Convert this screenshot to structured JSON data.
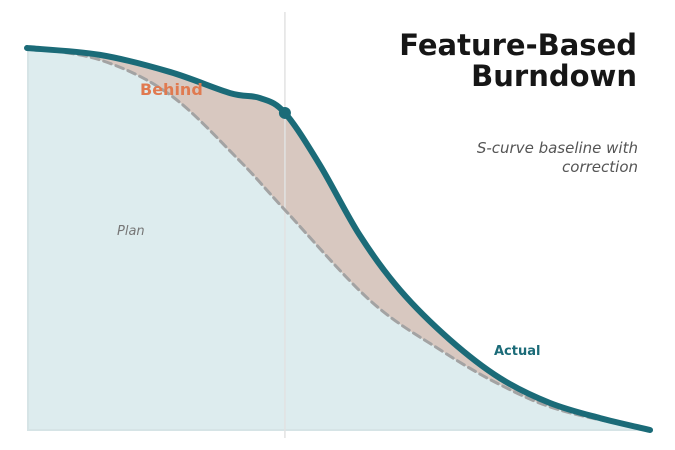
{
  "chart_data": {
    "type": "line",
    "title": "Feature-Based Burndown",
    "subtitle": "S-curve baseline with correction",
    "annotations": [
      "Behind",
      "Plan",
      "Actual"
    ],
    "xlim": [
      0,
      100
    ],
    "ylim": [
      0,
      100
    ],
    "marker_x": 41.4,
    "series": [
      {
        "name": "Plan",
        "color": "#a3a3a3",
        "dashed": true,
        "x": [
          0,
          11.7,
          23,
          34,
          41.4,
          55,
          66.3,
          76,
          85.6,
          100
        ],
        "values": [
          100,
          96.9,
          87.7,
          70.7,
          57.6,
          34,
          21,
          11.8,
          5.2,
          0
        ]
      },
      {
        "name": "Actual",
        "color": "#1b6b78",
        "x": [
          0,
          11.7,
          23,
          32.6,
          37.4,
          41.4,
          47.0,
          53.4,
          59.9,
          67.9,
          75.9,
          83.9,
          92.0,
          100
        ],
        "values": [
          100,
          98.2,
          93.7,
          88.2,
          86.9,
          83,
          69.4,
          51,
          36.6,
          23.6,
          13.6,
          7.1,
          3.1,
          0
        ]
      }
    ]
  }
}
